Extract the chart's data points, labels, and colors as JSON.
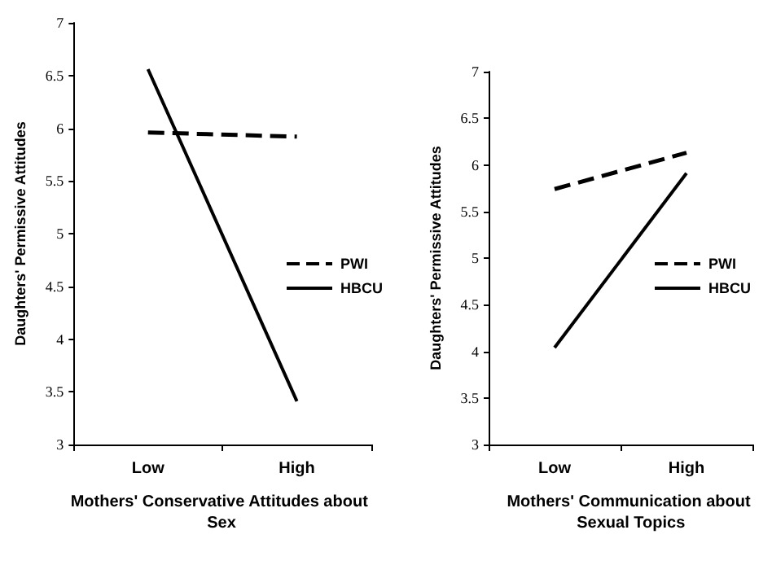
{
  "chart_data": [
    {
      "type": "line",
      "xlabel": "Mothers' Conservative Attitudes about Sex",
      "ylabel": "Daughters' Permissive Attitudes",
      "categories": [
        "Low",
        "High"
      ],
      "series": [
        {
          "name": "PWI",
          "color": "#000000",
          "line_style": "dashed",
          "values": [
            5.96,
            5.92
          ]
        },
        {
          "name": "HBCU",
          "color": "#000000",
          "line_style": "solid",
          "values": [
            6.56,
            3.41
          ]
        }
      ],
      "ylim": [
        3,
        7
      ],
      "yticks": [
        3,
        3.5,
        4,
        4.5,
        5,
        5.5,
        6,
        6.5,
        7
      ],
      "grid": false,
      "legend": "right",
      "marker": "none"
    },
    {
      "type": "line",
      "xlabel": "Mothers' Communication about Sexual Topics",
      "ylabel": "Daughters' Permissive Attitudes",
      "categories": [
        "Low",
        "High"
      ],
      "series": [
        {
          "name": "PWI",
          "color": "#000000",
          "line_style": "dashed",
          "values": [
            5.74,
            6.13
          ]
        },
        {
          "name": "HBCU",
          "color": "#000000",
          "line_style": "solid",
          "values": [
            4.04,
            5.91
          ]
        }
      ],
      "ylim": [
        3,
        7
      ],
      "yticks": [
        3,
        3.5,
        4,
        4.5,
        5,
        5.5,
        6,
        6.5,
        7
      ],
      "grid": false,
      "legend": "right",
      "marker": "none"
    }
  ]
}
